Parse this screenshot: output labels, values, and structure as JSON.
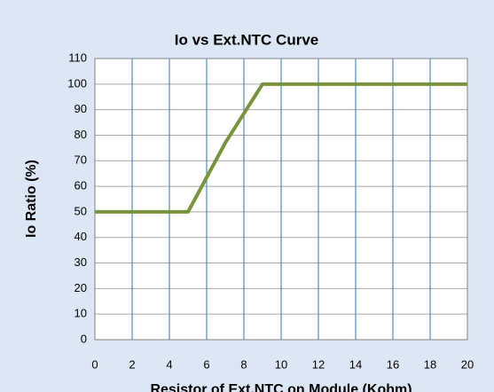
{
  "chart_data": {
    "type": "line",
    "title": "Io vs Ext.NTC Curve",
    "x_label": "Resistor of Ext.NTC on Module (Kohm)",
    "y_label": "Io Ratio (%)",
    "x": [
      0,
      5,
      7,
      9,
      20
    ],
    "series": [
      {
        "name": "Io Ratio",
        "color": "#77933c",
        "values": [
          50,
          50,
          77,
          100,
          100
        ]
      }
    ],
    "xlim": [
      0,
      20
    ],
    "xticks": [
      0,
      2,
      4,
      6,
      8,
      10,
      12,
      14,
      16,
      18,
      20
    ],
    "ylim": [
      0,
      110
    ],
    "yticks": [
      0,
      10,
      20,
      30,
      40,
      50,
      60,
      70,
      80,
      90,
      100,
      110
    ],
    "grid": true,
    "grid_color_x": "#2e74b5",
    "grid_color_y": "#a6a6a6"
  }
}
